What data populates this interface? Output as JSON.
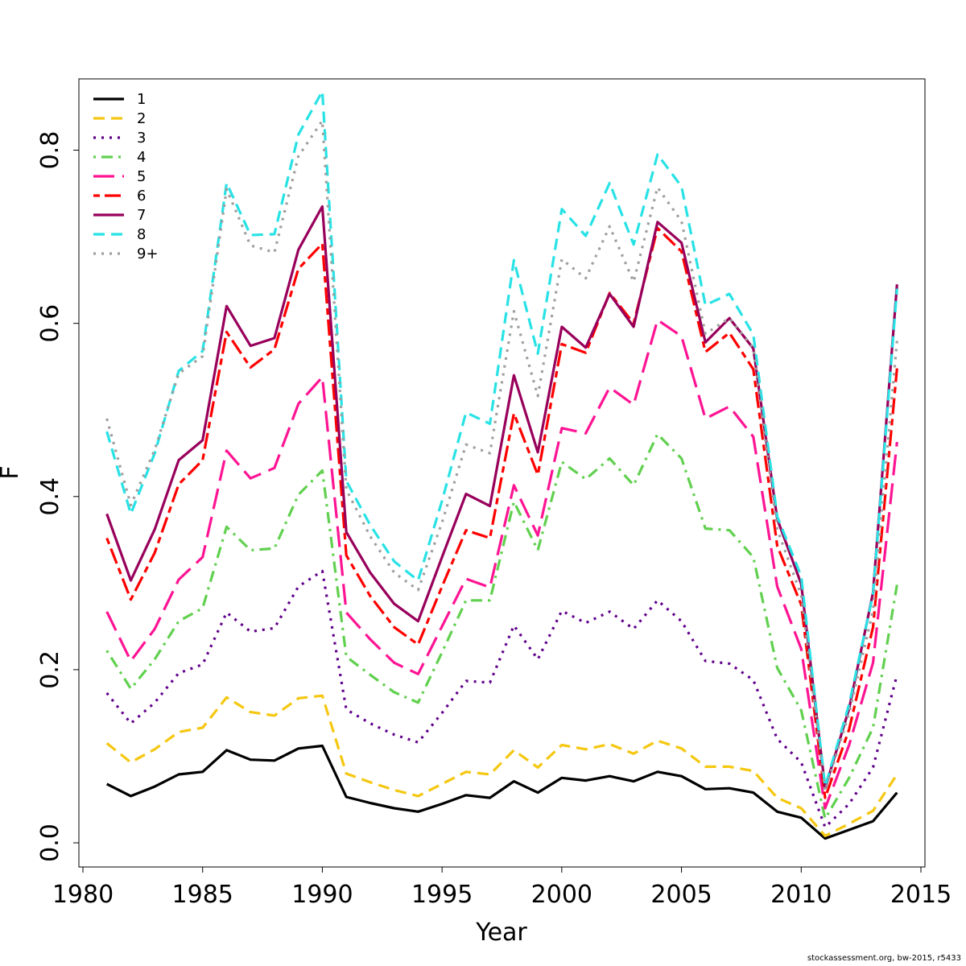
{
  "chart_data": {
    "type": "line",
    "xlabel": "Year",
    "ylabel": "F",
    "xlim": [
      1980,
      2015
    ],
    "ylim": [
      0,
      0.9
    ],
    "xticks": [
      "1980",
      "1985",
      "1990",
      "1995",
      "2000",
      "2005",
      "2010",
      "2015"
    ],
    "yticks": [
      "0.0",
      "0.2",
      "0.4",
      "0.6",
      "0.8"
    ],
    "legend_position": "top-left",
    "grid": false,
    "x": [
      1981,
      1982,
      1983,
      1984,
      1985,
      1986,
      1987,
      1988,
      1989,
      1990,
      1991,
      1992,
      1993,
      1994,
      1995,
      1996,
      1997,
      1998,
      1999,
      2000,
      2001,
      2002,
      2003,
      2004,
      2005,
      2006,
      2007,
      2008,
      2009,
      2010,
      2011,
      2012,
      2013,
      2014
    ],
    "series": [
      {
        "name": "1",
        "color": "#000000",
        "dash": "solid",
        "values": [
          0.068,
          0.054,
          0.065,
          0.079,
          0.082,
          0.107,
          0.096,
          0.095,
          0.109,
          0.112,
          0.053,
          0.046,
          0.04,
          0.036,
          0.045,
          0.055,
          0.052,
          0.071,
          0.058,
          0.075,
          0.072,
          0.077,
          0.071,
          0.082,
          0.077,
          0.062,
          0.063,
          0.058,
          0.036,
          0.029,
          0.005,
          0.015,
          0.025,
          0.058
        ]
      },
      {
        "name": "2",
        "color": "#f5c710",
        "dash": "dashed",
        "values": [
          0.115,
          0.093,
          0.108,
          0.128,
          0.133,
          0.168,
          0.151,
          0.147,
          0.167,
          0.17,
          0.08,
          0.07,
          0.061,
          0.054,
          0.068,
          0.082,
          0.079,
          0.107,
          0.087,
          0.113,
          0.108,
          0.114,
          0.103,
          0.118,
          0.109,
          0.088,
          0.088,
          0.083,
          0.052,
          0.04,
          0.008,
          0.022,
          0.037,
          0.079
        ]
      },
      {
        "name": "3",
        "color": "#61008b",
        "dash": "dotted",
        "values": [
          0.173,
          0.138,
          0.162,
          0.196,
          0.206,
          0.266,
          0.244,
          0.248,
          0.296,
          0.314,
          0.154,
          0.138,
          0.125,
          0.116,
          0.15,
          0.187,
          0.185,
          0.251,
          0.212,
          0.268,
          0.254,
          0.267,
          0.247,
          0.28,
          0.256,
          0.21,
          0.207,
          0.188,
          0.12,
          0.093,
          0.018,
          0.045,
          0.087,
          0.194
        ]
      },
      {
        "name": "4",
        "color": "#61d04f",
        "dash": "dotdash",
        "values": [
          0.222,
          0.178,
          0.212,
          0.256,
          0.271,
          0.365,
          0.338,
          0.34,
          0.402,
          0.43,
          0.215,
          0.194,
          0.174,
          0.162,
          0.22,
          0.28,
          0.28,
          0.394,
          0.338,
          0.44,
          0.42,
          0.444,
          0.413,
          0.472,
          0.444,
          0.363,
          0.361,
          0.33,
          0.202,
          0.153,
          0.028,
          0.075,
          0.133,
          0.298
        ]
      },
      {
        "name": "5",
        "color": "#ff1493",
        "dash": "longdash",
        "values": [
          0.267,
          0.21,
          0.247,
          0.304,
          0.33,
          0.453,
          0.421,
          0.433,
          0.507,
          0.538,
          0.266,
          0.235,
          0.208,
          0.195,
          0.25,
          0.305,
          0.295,
          0.413,
          0.355,
          0.479,
          0.473,
          0.526,
          0.506,
          0.604,
          0.585,
          0.49,
          0.504,
          0.469,
          0.296,
          0.224,
          0.04,
          0.113,
          0.208,
          0.463
        ]
      },
      {
        "name": "6",
        "color": "#ff0000",
        "dash": "twodash",
        "values": [
          0.352,
          0.281,
          0.335,
          0.414,
          0.442,
          0.59,
          0.549,
          0.57,
          0.663,
          0.692,
          0.332,
          0.285,
          0.249,
          0.229,
          0.296,
          0.361,
          0.352,
          0.496,
          0.425,
          0.576,
          0.566,
          0.635,
          0.6,
          0.71,
          0.683,
          0.567,
          0.589,
          0.547,
          0.343,
          0.275,
          0.052,
          0.131,
          0.249,
          0.548
        ]
      },
      {
        "name": "7",
        "color": "#98005b",
        "dash": "solid",
        "values": [
          0.38,
          0.303,
          0.362,
          0.442,
          0.465,
          0.62,
          0.574,
          0.583,
          0.685,
          0.735,
          0.359,
          0.312,
          0.276,
          0.256,
          0.33,
          0.403,
          0.389,
          0.54,
          0.451,
          0.596,
          0.572,
          0.634,
          0.596,
          0.717,
          0.693,
          0.578,
          0.606,
          0.571,
          0.374,
          0.299,
          0.063,
          0.155,
          0.289,
          0.645
        ]
      },
      {
        "name": "8",
        "color": "#28e2e5",
        "dash": "dashed",
        "values": [
          0.475,
          0.38,
          0.45,
          0.545,
          0.568,
          0.762,
          0.702,
          0.703,
          0.818,
          0.868,
          0.418,
          0.367,
          0.325,
          0.303,
          0.395,
          0.497,
          0.484,
          0.673,
          0.565,
          0.732,
          0.701,
          0.762,
          0.691,
          0.795,
          0.758,
          0.621,
          0.634,
          0.587,
          0.377,
          0.308,
          0.065,
          0.16,
          0.287,
          0.64
        ]
      },
      {
        "name": "9+",
        "color": "#9e9e9e",
        "dash": "dotted",
        "values": [
          0.49,
          0.39,
          0.454,
          0.542,
          0.562,
          0.755,
          0.69,
          0.682,
          0.793,
          0.834,
          0.408,
          0.354,
          0.312,
          0.292,
          0.37,
          0.46,
          0.45,
          0.614,
          0.516,
          0.674,
          0.652,
          0.712,
          0.648,
          0.757,
          0.718,
          0.588,
          0.606,
          0.572,
          0.362,
          0.286,
          0.06,
          0.15,
          0.268,
          0.58
        ]
      }
    ]
  },
  "footer": "stockassessment.org, bw-2015, r5433"
}
